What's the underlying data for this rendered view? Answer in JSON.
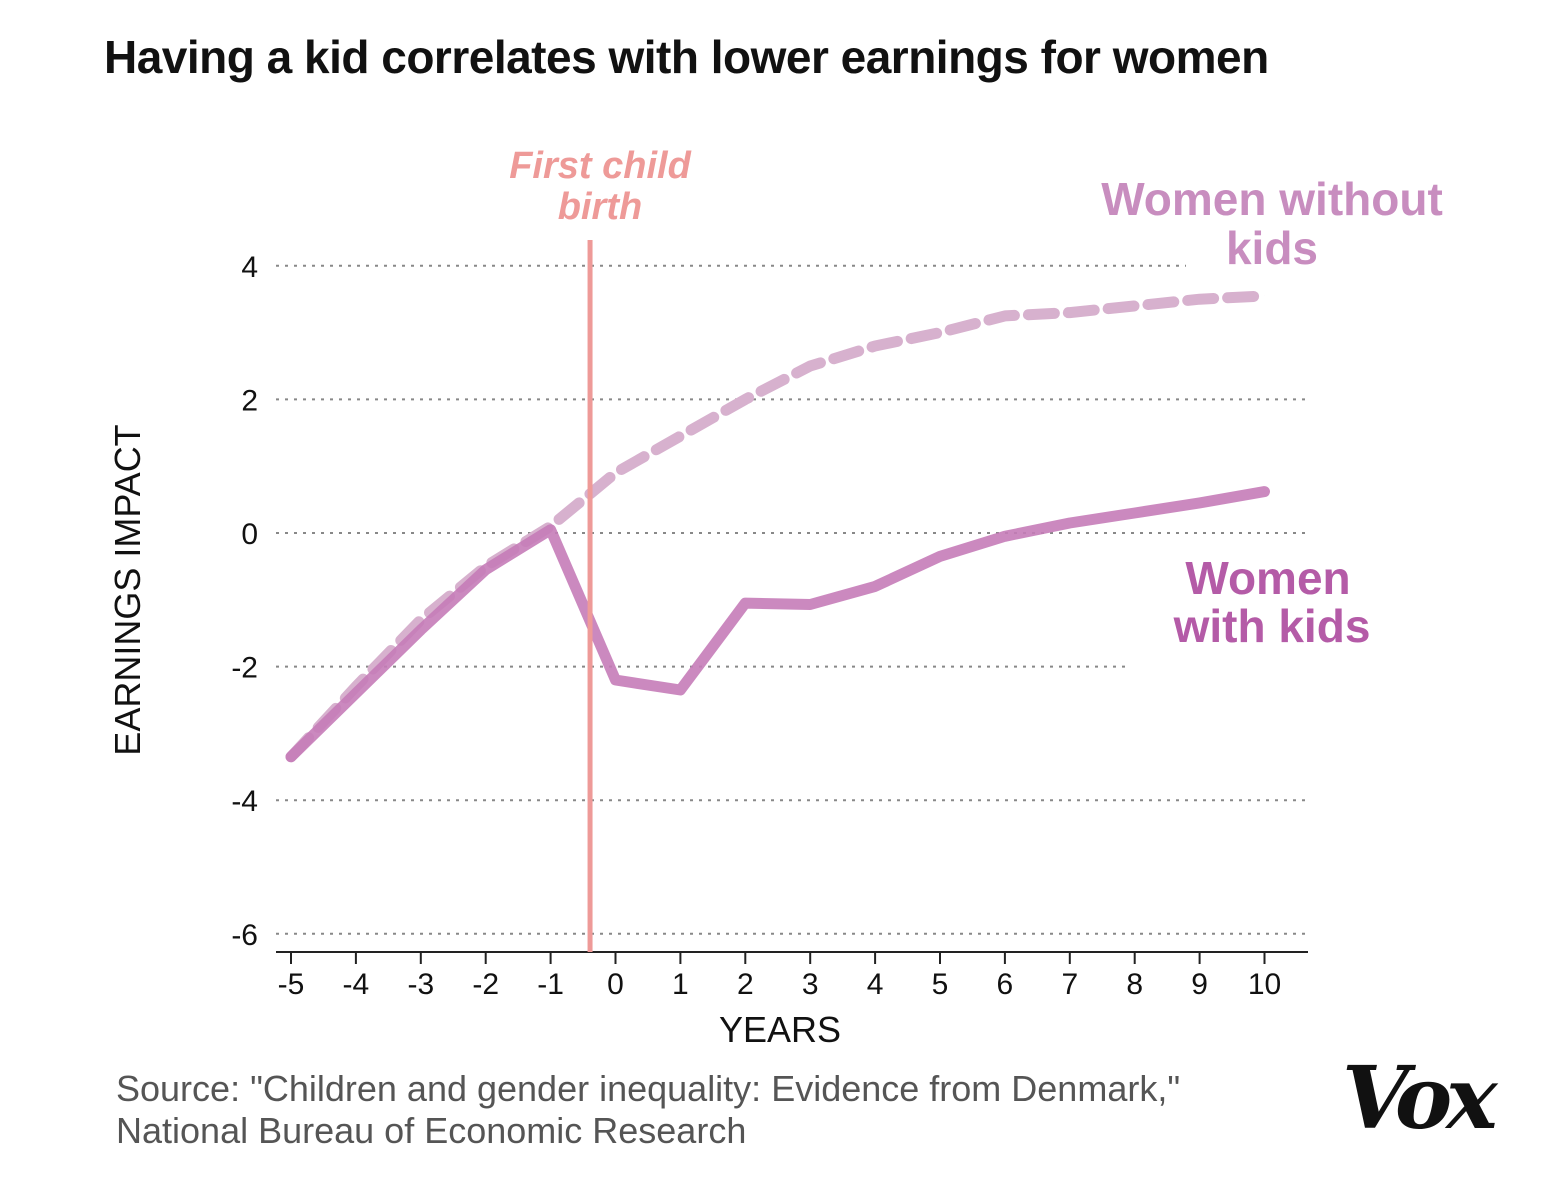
{
  "title": "Having a kid correlates with lower earnings for women",
  "source": {
    "line1": "Source: \"Children and gender inequality: Evidence from Denmark,\"",
    "line2": "National Bureau of Economic Research"
  },
  "logo": "Vox",
  "colors": {
    "with_kids": "#c57cb8",
    "without_kids": "#d7b1ce",
    "with_kids_label": "#b45ba7",
    "without_kids_label": "#c88dbf",
    "birth_line": "#ee9a98",
    "birth_label": "#ee9a98",
    "grid": "#888888",
    "axis_text": "#111111"
  },
  "chart_data": {
    "type": "line",
    "xlabel": "YEARS",
    "ylabel": "EARNINGS IMPACT",
    "x_ticks": [
      -5,
      -4,
      -3,
      -2,
      -1,
      0,
      1,
      2,
      3,
      4,
      5,
      6,
      7,
      8,
      9,
      10
    ],
    "y_ticks": [
      4,
      2,
      0,
      -2,
      -4,
      -6
    ],
    "xlim": [
      -5.3,
      10.7
    ],
    "ylim": [
      -6.3,
      4.4
    ],
    "grid": "dotted horizontal",
    "series": [
      {
        "name": "Women without kids",
        "style": "dashed",
        "x": [
          -5,
          -4,
          -3,
          -2,
          -1,
          0,
          1,
          2,
          3,
          4,
          5,
          6,
          7,
          8,
          9,
          10
        ],
        "values": [
          -3.35,
          -2.3,
          -1.3,
          -0.5,
          0.1,
          0.9,
          1.45,
          2.0,
          2.5,
          2.8,
          3.0,
          3.25,
          3.3,
          3.4,
          3.5,
          3.55
        ]
      },
      {
        "name": "Women with kids",
        "style": "solid",
        "x": [
          -5,
          -4,
          -3,
          -2,
          -1,
          0,
          1,
          2,
          3,
          4,
          5,
          6,
          7,
          8,
          9,
          10
        ],
        "values": [
          -3.35,
          -2.4,
          -1.45,
          -0.55,
          0.05,
          -2.2,
          -2.35,
          -1.05,
          -1.07,
          -0.8,
          -0.35,
          -0.05,
          0.15,
          0.3,
          0.45,
          0.62
        ]
      }
    ],
    "annotations": [
      {
        "text_line1": "First child",
        "text_line2": "birth",
        "x": -0.5
      }
    ]
  }
}
